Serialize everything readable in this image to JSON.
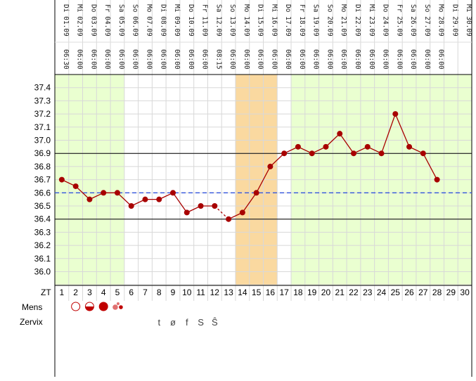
{
  "chart_data": {
    "type": "line",
    "title": "",
    "xlabel": "ZT",
    "ylabel": "",
    "ylim": [
      35.9,
      37.5
    ],
    "y_ticks": [
      "37.4",
      "37.3",
      "37.2",
      "37.1",
      "37.0",
      "36.9",
      "36.8",
      "36.7",
      "36.6",
      "36.5",
      "36.4",
      "36.3",
      "36.2",
      "36.1",
      "36.0"
    ],
    "grid": true,
    "cycle_days": [
      "1",
      "2",
      "3",
      "4",
      "5",
      "6",
      "7",
      "8",
      "9",
      "10",
      "11",
      "12",
      "13",
      "14",
      "15",
      "16",
      "17",
      "18",
      "19",
      "20",
      "21",
      "22",
      "23",
      "24",
      "25",
      "26",
      "27",
      "28",
      "29",
      "30"
    ],
    "dates": [
      "Di 01.09",
      "Mi 02.09",
      "Do 03.09",
      "Fr 04.09",
      "Sa 05.09",
      "So 06.09",
      "Mo 07.09",
      "Di 08.09",
      "Mi 09.09",
      "Do 10.09",
      "Fr 11.09",
      "Sa 12.09",
      "So 13.09",
      "Mo 14.09",
      "Di 15.09",
      "Mi 16.09",
      "Do 17.09",
      "Fr 18.09",
      "Sa 19.09",
      "So 20.09",
      "Mo 21.09",
      "Di 22.09",
      "Mi 23.09",
      "Do 24.09",
      "Fr 25.09",
      "Sa 26.09",
      "So 27.09",
      "Mo 28.09",
      "Di 29.09",
      "Mi 30.09"
    ],
    "times": [
      "06:30",
      "06:00",
      "06:00",
      "06:00",
      "06:00",
      "06:00",
      "06:00",
      "06:00",
      "06:00",
      "06:00",
      "06:00",
      "08:15",
      "06:00",
      "06:00",
      "06:00",
      "06:00",
      "06:00",
      "06:00",
      "06:00",
      "06:00",
      "06:00",
      "06:00",
      "06:00",
      "06:00",
      "06:00",
      "06:00",
      "06:00",
      "06:00",
      "",
      ""
    ],
    "series": [
      {
        "values": [
          36.7,
          36.65,
          36.55,
          36.6,
          36.6,
          36.5,
          36.55,
          36.55,
          36.6,
          36.45,
          36.5,
          36.5,
          36.4,
          36.45,
          36.6,
          36.8,
          36.9,
          36.95,
          36.9,
          36.95,
          37.05,
          36.9,
          36.95,
          36.9,
          37.2,
          36.95,
          36.9,
          36.7,
          null,
          null
        ],
        "color": "#a80000",
        "dashed_segments": [
          [
            12,
            13
          ]
        ]
      }
    ],
    "coverline": {
      "value": 36.6,
      "color": "#3355dd"
    },
    "reference_lines": [
      36.9,
      36.4
    ],
    "infertile_ranges": [
      [
        1,
        5
      ],
      [
        18,
        30
      ]
    ],
    "fertile_range": [
      14,
      16
    ],
    "colors": {
      "infertile": "#eaffd0",
      "fertile": "#fad9a0",
      "grid": "#d8d8d8"
    }
  },
  "rows": {
    "zt_label": "ZT",
    "mens_label": "Mens",
    "zervix_label": "Zervix"
  },
  "mens": [
    {
      "day": 2,
      "kind": "spotting-open-circle"
    },
    {
      "day": 3,
      "kind": "half-filled-circle"
    },
    {
      "day": 4,
      "kind": "filled-circle"
    },
    {
      "day": 5,
      "kind": "small-dots"
    }
  ],
  "zervix": [
    {
      "day": 8,
      "symbol": "t"
    },
    {
      "day": 9,
      "symbol": "ø"
    },
    {
      "day": 10,
      "symbol": "f"
    },
    {
      "day": 11,
      "symbol": "S"
    },
    {
      "day": 12,
      "symbol": "Ŝ"
    }
  ]
}
